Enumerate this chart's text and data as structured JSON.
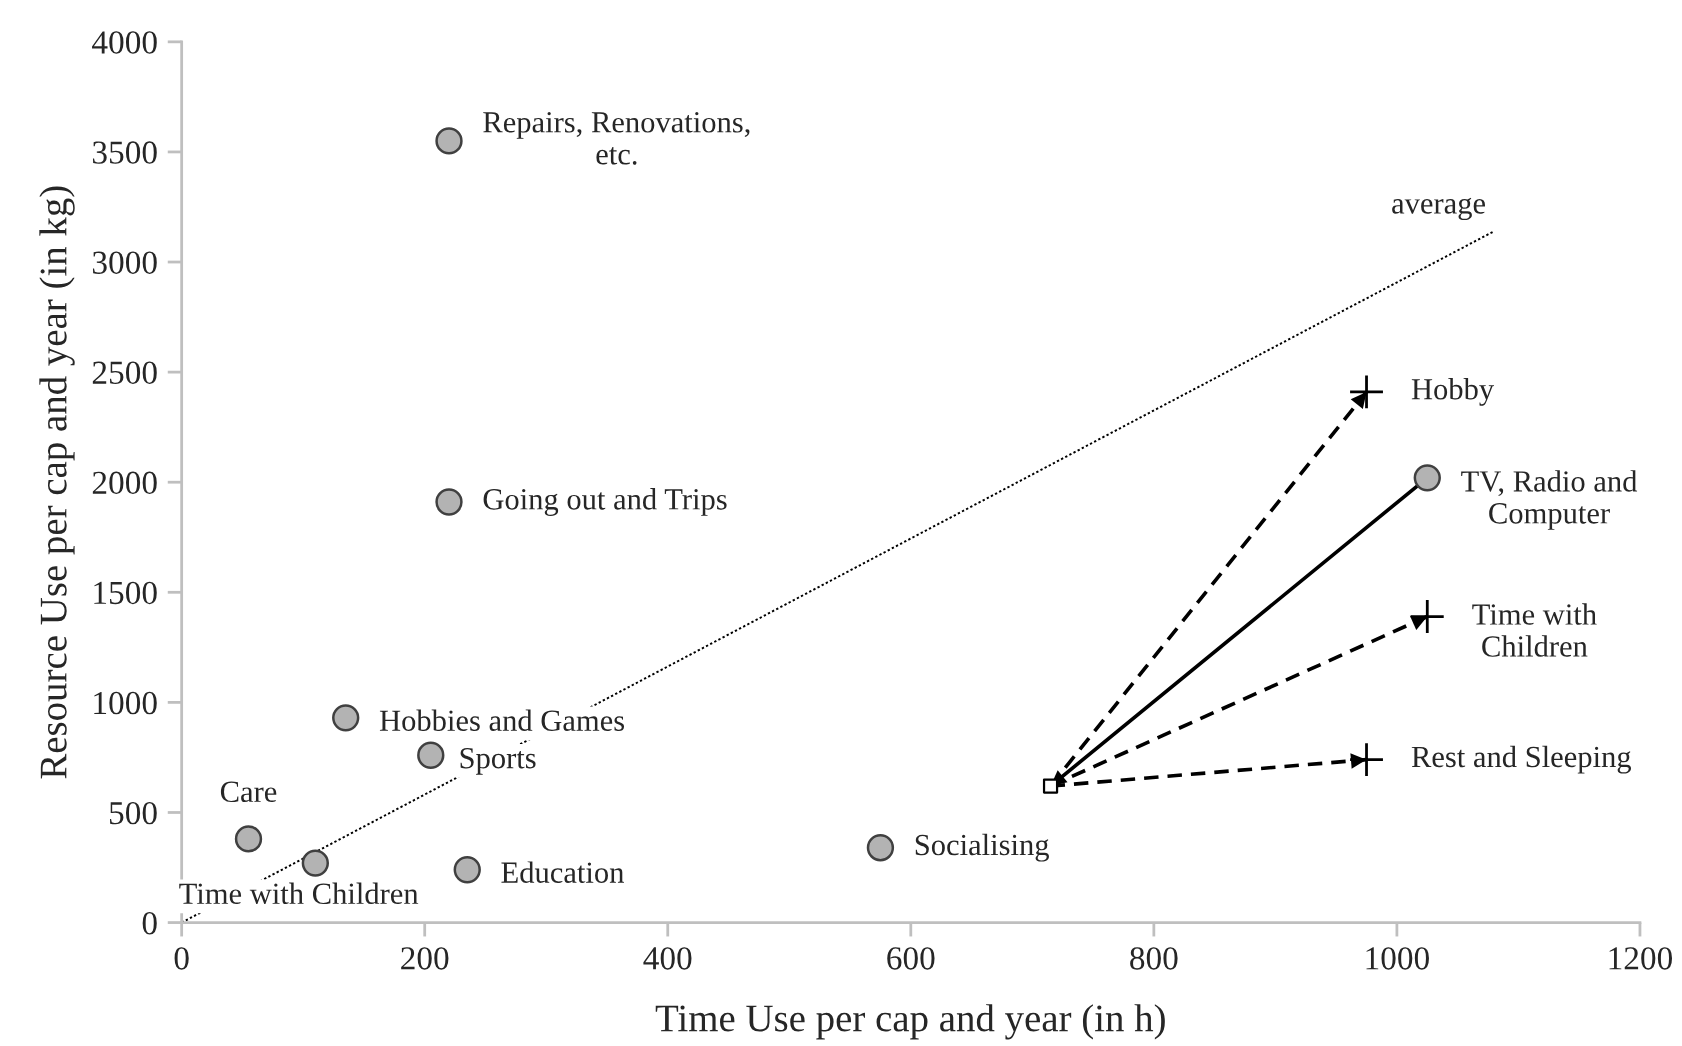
{
  "chart_data": {
    "type": "scatter",
    "xlabel": "Time Use per cap and year (in h)",
    "ylabel": "Resource Use per cap and year (in kg)",
    "xlim": [
      0,
      1200
    ],
    "xticks": [
      0,
      200,
      400,
      600,
      800,
      1000,
      1200
    ],
    "ylim": [
      0,
      4000
    ],
    "yticks": [
      0,
      500,
      1000,
      1500,
      2000,
      2500,
      3000,
      3500,
      4000
    ],
    "grid": false,
    "legend": false,
    "series": [
      {
        "type": "line",
        "line_style": "dotted",
        "color": "#000000",
        "x": [
          0,
          1080
        ],
        "values": [
          0,
          3140
        ]
      },
      {
        "type": "line",
        "line_style": "solid",
        "color": "#000000",
        "x": [
          1025,
          715
        ],
        "values": [
          2020,
          620
        ]
      },
      {
        "type": "line",
        "line_style": "dashed",
        "color": "#000000",
        "x": [
          715,
          975
        ],
        "values": [
          620,
          2410
        ]
      },
      {
        "type": "line",
        "line_style": "dashed",
        "color": "#000000",
        "x": [
          715,
          1025
        ],
        "values": [
          620,
          1390
        ]
      },
      {
        "type": "line",
        "line_style": "dashed",
        "color": "#000000",
        "x": [
          715,
          975
        ],
        "values": [
          620,
          740
        ]
      },
      {
        "marker": "circle",
        "color": "#b3b3b3",
        "x": [
          220,
          220,
          135,
          205,
          55,
          110,
          235,
          575,
          1025
        ],
        "values": [
          3550,
          1910,
          930,
          760,
          380,
          270,
          240,
          340,
          2020
        ]
      },
      {
        "marker": "cross",
        "color": "#000000",
        "x": [
          975,
          1025,
          975
        ],
        "values": [
          2410,
          1390,
          740
        ]
      },
      {
        "marker": "square",
        "color": "#ffffff",
        "x": [
          715
        ],
        "values": [
          620
        ]
      }
    ],
    "annotations": [
      {
        "text": "Repairs, Renovations,\netc.",
        "x": 220,
        "y": 3550
      },
      {
        "text": "Going out and Trips",
        "x": 220,
        "y": 1910
      },
      {
        "text": "Hobbies and Games",
        "x": 135,
        "y": 930
      },
      {
        "text": "Sports",
        "x": 205,
        "y": 760
      },
      {
        "text": "Care",
        "x": 55,
        "y": 380
      },
      {
        "text": "Time with Children",
        "x": 110,
        "y": 270
      },
      {
        "text": "Education",
        "x": 235,
        "y": 240
      },
      {
        "text": "Socialising",
        "x": 575,
        "y": 340
      },
      {
        "text": "TV, Radio and\nComputer",
        "x": 1025,
        "y": 2020
      },
      {
        "text": "Hobby",
        "x": 975,
        "y": 2410
      },
      {
        "text": "Time with\nChildren",
        "x": 1025,
        "y": 1390
      },
      {
        "text": "Rest and Sleeping",
        "x": 975,
        "y": 740
      },
      {
        "text": "average",
        "x": 1080,
        "y": 3140
      }
    ]
  }
}
